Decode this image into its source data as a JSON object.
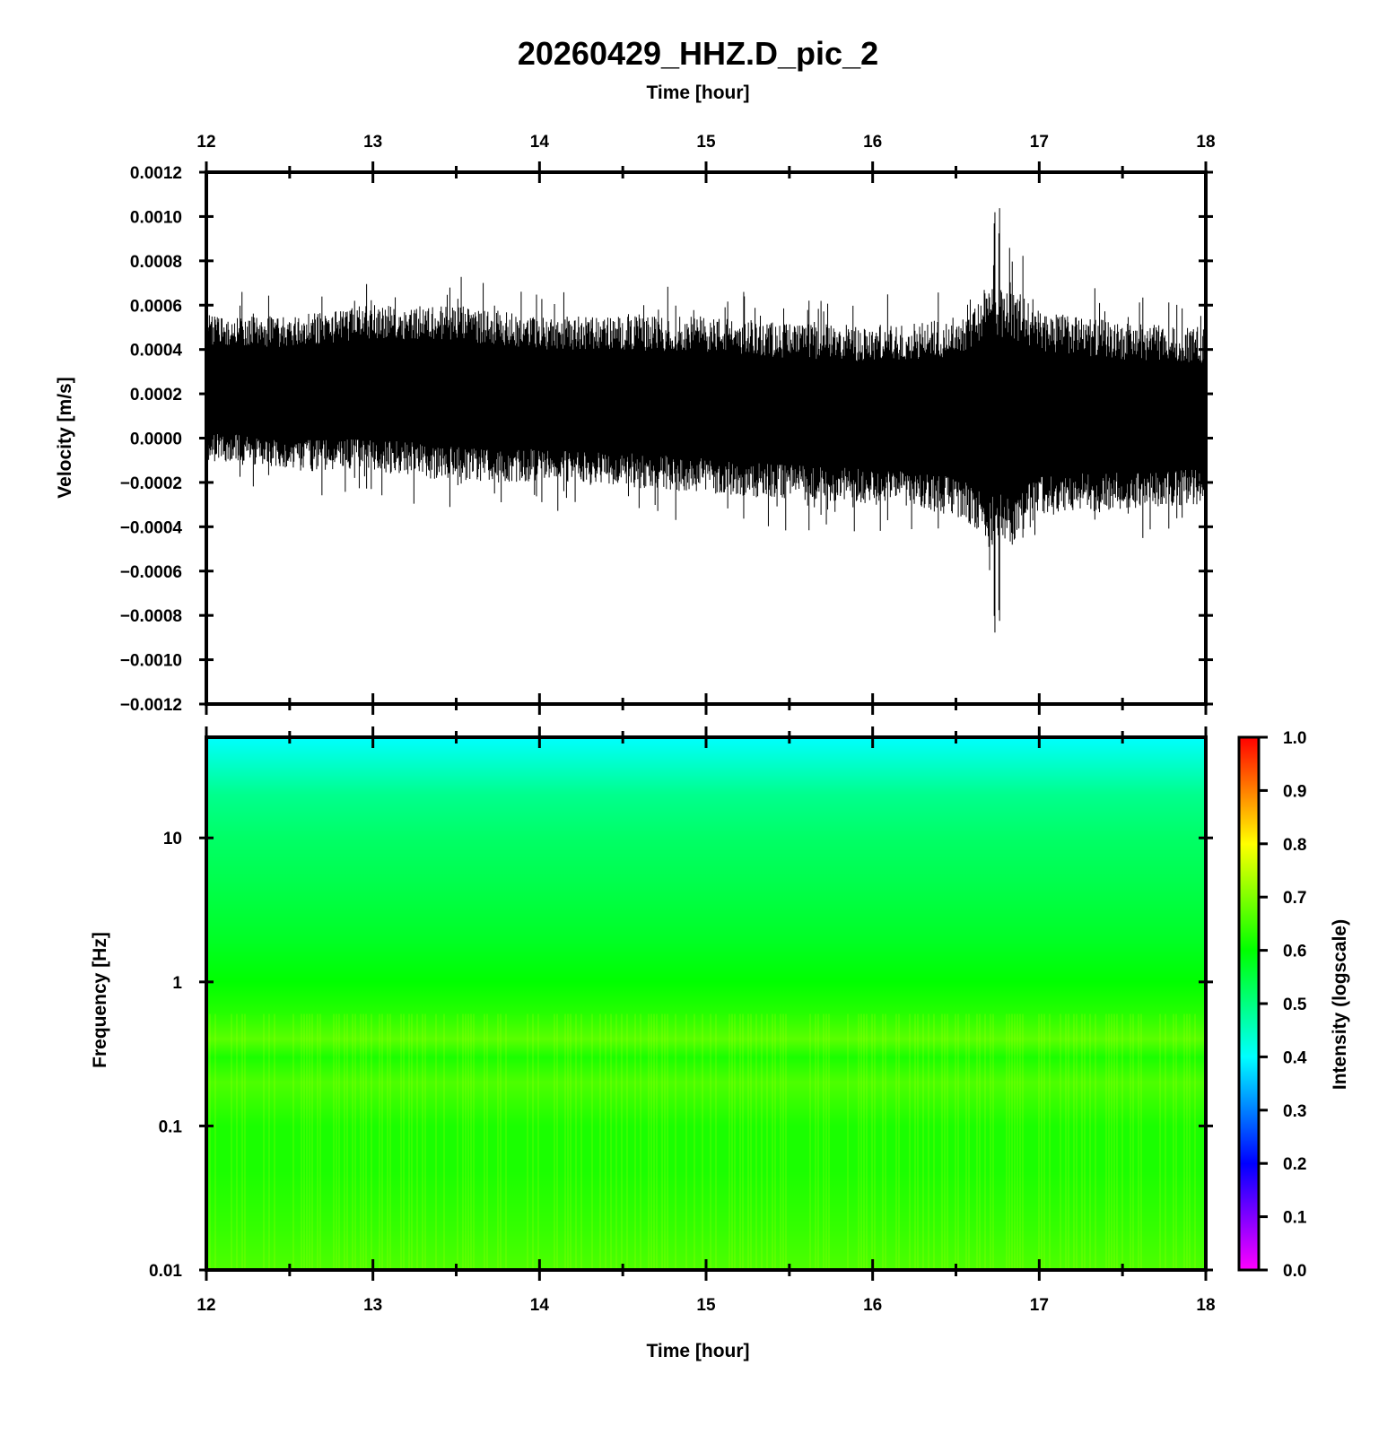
{
  "chart_data": [
    {
      "type": "line",
      "title": "20260429_HHZ.D_pic_2",
      "top_xlabel": "Time [hour]",
      "ylabel": "Velocity [m/s]",
      "xlim": [
        12,
        18
      ],
      "ylim": [
        -0.0012,
        0.0012
      ],
      "x_ticks": [
        "12",
        "13",
        "14",
        "15",
        "16",
        "17",
        "18"
      ],
      "y_ticks": [
        "0.0012",
        "0.0010",
        "0.0008",
        "0.0006",
        "0.0004",
        "0.0002",
        "0.0000",
        "−0.0002",
        "−0.0004",
        "−0.0006",
        "−0.0008",
        "−0.0010",
        "−0.0012"
      ],
      "y_tick_values": [
        0.0012,
        0.001,
        0.0008,
        0.0006,
        0.0004,
        0.0002,
        0.0,
        -0.0002,
        -0.0004,
        -0.0006,
        -0.0008,
        -0.001,
        -0.0012
      ],
      "grid": false,
      "series_color": "#000000",
      "envelope": {
        "hours": [
          12.0,
          12.5,
          13.0,
          13.5,
          14.0,
          14.5,
          15.0,
          15.5,
          16.0,
          16.5,
          16.7,
          16.9,
          17.0,
          17.5,
          18.0
        ],
        "upper": [
          0.00055,
          0.00055,
          0.0006,
          0.0006,
          0.00055,
          0.00055,
          0.00055,
          0.00052,
          0.0005,
          0.00055,
          0.0007,
          0.00065,
          0.00058,
          0.00052,
          0.0005
        ],
        "lower": [
          -0.0001,
          -0.00015,
          -0.00015,
          -0.0002,
          -0.0002,
          -0.00022,
          -0.00025,
          -0.00028,
          -0.0003,
          -0.00035,
          -0.0005,
          -0.00045,
          -0.00035,
          -0.00032,
          -0.0003
        ],
        "peak_max": 0.00104,
        "peak_min": -0.00091,
        "peak_hour": 16.75
      }
    },
    {
      "type": "heatmap",
      "xlabel": "Time [hour]",
      "ylabel": "Frequency [Hz]",
      "xlim": [
        12,
        18
      ],
      "ylim": [
        0.01,
        50
      ],
      "yscale": "log",
      "x_ticks": [
        "12",
        "13",
        "14",
        "15",
        "16",
        "17",
        "18"
      ],
      "y_ticks": [
        "10",
        "1",
        "0.1",
        "0.01"
      ],
      "y_tick_values": [
        10,
        1,
        0.1,
        0.01
      ],
      "colorbar": {
        "label": "Intensity (logscale)",
        "range": [
          0.0,
          1.0
        ],
        "ticks": [
          "1.0",
          "0.9",
          "0.8",
          "0.7",
          "0.6",
          "0.5",
          "0.4",
          "0.3",
          "0.2",
          "0.1",
          "0.0"
        ],
        "tick_values": [
          1.0,
          0.9,
          0.8,
          0.7,
          0.6,
          0.5,
          0.4,
          0.3,
          0.2,
          0.1,
          0.0
        ],
        "colormap": [
          "#ff00ff",
          "#8000ff",
          "#0000ff",
          "#0080ff",
          "#00ffff",
          "#00ff80",
          "#00ff00",
          "#80ff00",
          "#ffff00",
          "#ff8000",
          "#ff0000"
        ]
      },
      "intensity_profile": {
        "freq_hz": [
          50,
          30,
          20,
          10,
          5,
          2,
          1,
          0.6,
          0.4,
          0.3,
          0.2,
          0.1,
          0.05,
          0.02,
          0.01
        ],
        "intensity": [
          0.4,
          0.45,
          0.49,
          0.52,
          0.54,
          0.57,
          0.6,
          0.63,
          0.67,
          0.62,
          0.66,
          0.62,
          0.62,
          0.64,
          0.66
        ]
      }
    }
  ]
}
